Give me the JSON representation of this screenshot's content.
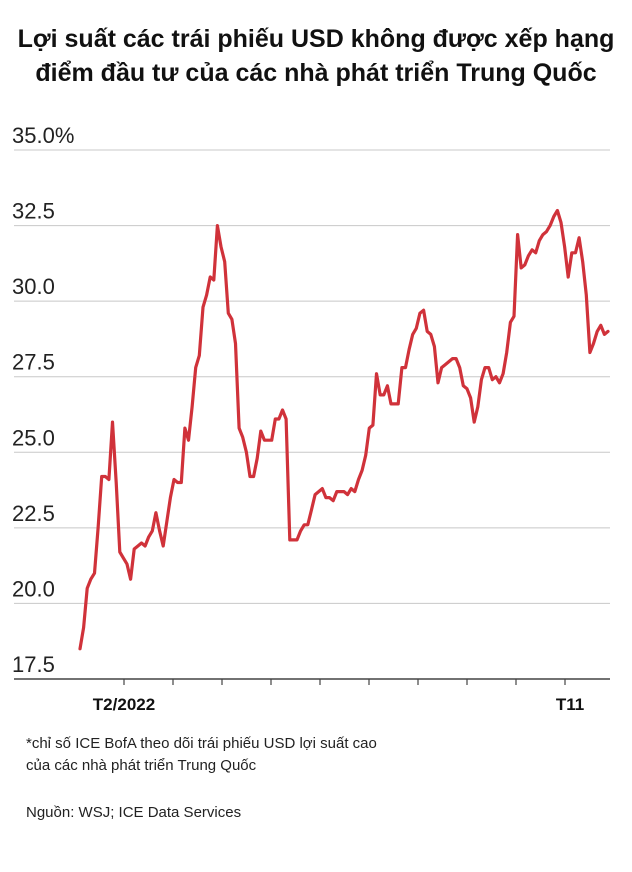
{
  "title_line1": "Lợi suất các trái phiếu USD không được xếp hạng",
  "title_line2": "điểm đầu tư của các nhà phát triển Trung Quốc",
  "note_line1": "*chỉ số ICE BofA theo dõi trái phiếu USD lợi suất cao",
  "note_line2": "của các nhà phát triển Trung Quốc",
  "source": "Nguồn: WSJ; ICE Data Services",
  "chart_data": {
    "type": "line",
    "title": "Lợi suất các trái phiếu USD không được xếp hạng điểm đầu tư của các nhà phát triển Trung Quốc",
    "xlabel": "",
    "ylabel": "",
    "x_tick_labels": [
      "T2/2022",
      "T11"
    ],
    "y_ticks": [
      {
        "value": 35.0,
        "label": "35.0%"
      },
      {
        "value": 32.5,
        "label": "32.5"
      },
      {
        "value": 30.0,
        "label": "30.0"
      },
      {
        "value": 27.5,
        "label": "27.5"
      },
      {
        "value": 25.0,
        "label": "25.0"
      },
      {
        "value": 22.5,
        "label": "22.5"
      },
      {
        "value": 20.0,
        "label": "20.0"
      },
      {
        "value": 17.5,
        "label": "17.5"
      }
    ],
    "ylim": [
      17.5,
      35.0
    ],
    "grid": true,
    "line_color": "#d0323a",
    "series": [
      {
        "values": [
          18.5,
          19.2,
          20.5,
          20.8,
          21.0,
          22.5,
          24.2,
          24.2,
          24.1,
          26.0,
          24.0,
          21.7,
          21.5,
          21.3,
          20.8,
          21.8,
          21.9,
          22.0,
          21.9,
          22.2,
          22.4,
          23.0,
          22.4,
          21.9,
          22.7,
          23.5,
          24.1,
          24.0,
          24.0,
          25.8,
          25.4,
          26.5,
          27.8,
          28.2,
          29.8,
          30.2,
          30.8,
          30.7,
          32.5,
          31.8,
          31.3,
          29.6,
          29.4,
          28.6,
          25.8,
          25.5,
          25.0,
          24.2,
          24.2,
          24.8,
          25.7,
          25.4,
          25.4,
          25.4,
          26.1,
          26.1,
          26.4,
          26.1,
          22.1,
          22.1,
          22.1,
          22.4,
          22.6,
          22.6,
          23.1,
          23.6,
          23.7,
          23.8,
          23.5,
          23.5,
          23.4,
          23.7,
          23.7,
          23.7,
          23.6,
          23.8,
          23.7,
          24.1,
          24.4,
          24.9,
          25.8,
          25.9,
          27.6,
          26.9,
          26.9,
          27.2,
          26.6,
          26.6,
          26.6,
          27.8,
          27.8,
          28.4,
          28.9,
          29.1,
          29.6,
          29.7,
          29.0,
          28.9,
          28.5,
          27.3,
          27.8,
          27.9,
          28.0,
          28.1,
          28.1,
          27.8,
          27.2,
          27.1,
          26.8,
          26.0,
          26.5,
          27.4,
          27.8,
          27.8,
          27.4,
          27.5,
          27.3,
          27.6,
          28.3,
          29.3,
          29.5,
          32.2,
          31.1,
          31.2,
          31.5,
          31.7,
          31.6,
          32.0,
          32.2,
          32.3,
          32.5,
          32.8,
          33.0,
          32.6,
          31.8,
          30.8,
          31.6,
          31.6,
          32.1,
          31.3,
          30.2,
          28.3,
          28.6,
          29.0,
          29.2,
          28.9,
          29.0
        ]
      }
    ]
  }
}
